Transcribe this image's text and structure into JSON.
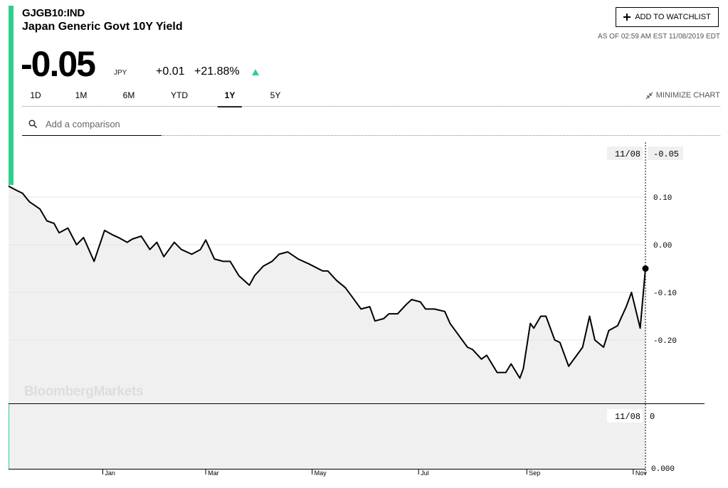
{
  "header": {
    "ticker": "GJGB10:IND",
    "name": "Japan Generic Govt 10Y Yield",
    "price": "-0.05",
    "currency": "JPY",
    "change": "+0.01",
    "change_pct": "+21.88%",
    "change_direction_icon": "up-triangle-icon",
    "as_of": "AS OF 02:59 AM EST 11/08/2019 EDT"
  },
  "watchlist": {
    "label": "ADD TO WATCHLIST",
    "icon": "plus-icon"
  },
  "tabs": [
    {
      "label": "1D"
    },
    {
      "label": "1M"
    },
    {
      "label": "6M"
    },
    {
      "label": "YTD"
    },
    {
      "label": "1Y",
      "active": true
    },
    {
      "label": "5Y"
    }
  ],
  "minimize": {
    "label": "MINIMIZE CHART",
    "icon": "minimize-icon"
  },
  "comparison": {
    "placeholder": "Add a comparison"
  },
  "watermark": "BloombergMarkets",
  "colors": {
    "accent": "#2fcf8e",
    "line": "#000000",
    "fill": "#f0f0f0"
  },
  "chart_data": {
    "type": "area",
    "title": "",
    "xlabel": "",
    "ylabel": "",
    "x_ticks": [
      "Jan",
      "Mar",
      "May",
      "Jul",
      "Sep",
      "Nov"
    ],
    "y_ticks": [
      "0.10",
      "0.00",
      "-0.10",
      "-0.20"
    ],
    "ylim": [
      -0.3,
      0.15
    ],
    "grid": true,
    "crosshair": {
      "date_label": "11/08",
      "value_label": "-0.05"
    },
    "last_point": -0.05,
    "series": [
      {
        "x": [
          "2018-11-08",
          "2018-11-12",
          "2018-11-16",
          "2018-11-20",
          "2018-11-26",
          "2018-11-30",
          "2018-12-04",
          "2018-12-07",
          "2018-12-12",
          "2018-12-17",
          "2018-12-21",
          "2018-12-27",
          "2019-01-02",
          "2019-01-07",
          "2019-01-10",
          "2019-01-15",
          "2019-01-18",
          "2019-01-23",
          "2019-01-28",
          "2019-02-01",
          "2019-02-05",
          "2019-02-11",
          "2019-02-15",
          "2019-02-21",
          "2019-02-26",
          "2019-03-01",
          "2019-03-06",
          "2019-03-11",
          "2019-03-15",
          "2019-03-20",
          "2019-03-26",
          "2019-03-29",
          "2019-04-03",
          "2019-04-08",
          "2019-04-12",
          "2019-04-17",
          "2019-04-23",
          "2019-04-29",
          "2019-05-07",
          "2019-05-10",
          "2019-05-15",
          "2019-05-20",
          "2019-05-24",
          "2019-05-29",
          "2019-06-03",
          "2019-06-06",
          "2019-06-11",
          "2019-06-14",
          "2019-06-19",
          "2019-06-24",
          "2019-06-27",
          "2019-07-02",
          "2019-07-05",
          "2019-07-10",
          "2019-07-16",
          "2019-07-19",
          "2019-07-24",
          "2019-07-29",
          "2019-08-01",
          "2019-08-06",
          "2019-08-09",
          "2019-08-15",
          "2019-08-20",
          "2019-08-23",
          "2019-08-28",
          "2019-08-30",
          "2019-09-03",
          "2019-09-05",
          "2019-09-09",
          "2019-09-12",
          "2019-09-17",
          "2019-09-20",
          "2019-09-25",
          "2019-09-30",
          "2019-10-03",
          "2019-10-07",
          "2019-10-10",
          "2019-10-15",
          "2019-10-18",
          "2019-10-23",
          "2019-10-28",
          "2019-10-31",
          "2019-11-05",
          "2019-11-08"
        ],
        "values": [
          0.123,
          0.115,
          0.108,
          0.09,
          0.075,
          0.05,
          0.045,
          0.025,
          0.035,
          0.0,
          0.015,
          -0.035,
          0.03,
          0.02,
          0.015,
          0.005,
          0.012,
          0.018,
          -0.01,
          0.005,
          -0.025,
          0.005,
          -0.01,
          -0.02,
          -0.01,
          0.01,
          -0.03,
          -0.035,
          -0.035,
          -0.065,
          -0.085,
          -0.065,
          -0.045,
          -0.035,
          -0.02,
          -0.015,
          -0.03,
          -0.04,
          -0.055,
          -0.055,
          -0.075,
          -0.09,
          -0.11,
          -0.135,
          -0.13,
          -0.16,
          -0.155,
          -0.145,
          -0.145,
          -0.125,
          -0.115,
          -0.12,
          -0.135,
          -0.135,
          -0.14,
          -0.165,
          -0.19,
          -0.215,
          -0.22,
          -0.24,
          -0.232,
          -0.268,
          -0.268,
          -0.25,
          -0.28,
          -0.26,
          -0.165,
          -0.175,
          -0.15,
          -0.15,
          -0.2,
          -0.205,
          -0.255,
          -0.23,
          -0.215,
          -0.15,
          -0.2,
          -0.215,
          -0.18,
          -0.17,
          -0.13,
          -0.1,
          -0.175,
          -0.05
        ]
      }
    ],
    "lower_panel": {
      "date_label": "11/08",
      "value_label": "0",
      "y_tick": "0.000"
    }
  }
}
